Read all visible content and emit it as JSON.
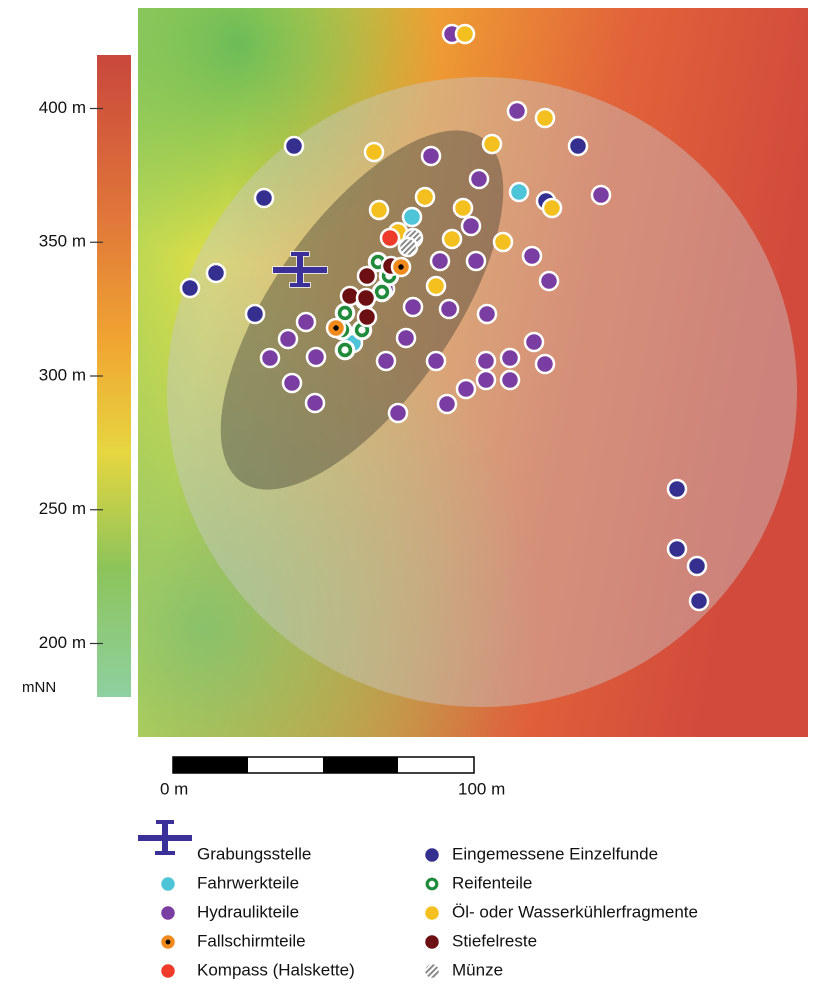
{
  "elevation_scale": {
    "range": [
      180,
      420
    ],
    "ticks": [
      {
        "value": 400,
        "label": "400 m"
      },
      {
        "value": 350,
        "label": "350 m"
      },
      {
        "value": 300,
        "label": "300 m"
      },
      {
        "value": 250,
        "label": "250 m"
      },
      {
        "value": 200,
        "label": "200 m"
      }
    ],
    "unit": "mNN"
  },
  "scale_bar": {
    "start_label": "0 m",
    "end_label": "100 m"
  },
  "legend": [
    {
      "label": "Grabungsstelle",
      "color": "#3b2f9a"
    },
    {
      "label": "Fahrwerkteile",
      "color": "#4ec4d8"
    },
    {
      "label": "Hydraulikteile",
      "color": "#7a3ea3"
    },
    {
      "label": "Fallschirmteile",
      "color": "#f08a1c"
    },
    {
      "label": "Kompass (Halskette)",
      "color": "#ee3b2a"
    },
    {
      "label": "Eingemessene Einzelfunde",
      "color": "#35308f"
    },
    {
      "label": "Reifenteile",
      "color": "#1f8a3a"
    },
    {
      "label": "Öl- oder Wasserkühlerfragmente",
      "color": "#f4c020"
    },
    {
      "label": "Stiefelreste",
      "color": "#6b0f12"
    },
    {
      "label": "Münze",
      "color": "#8a8a8a"
    }
  ]
}
